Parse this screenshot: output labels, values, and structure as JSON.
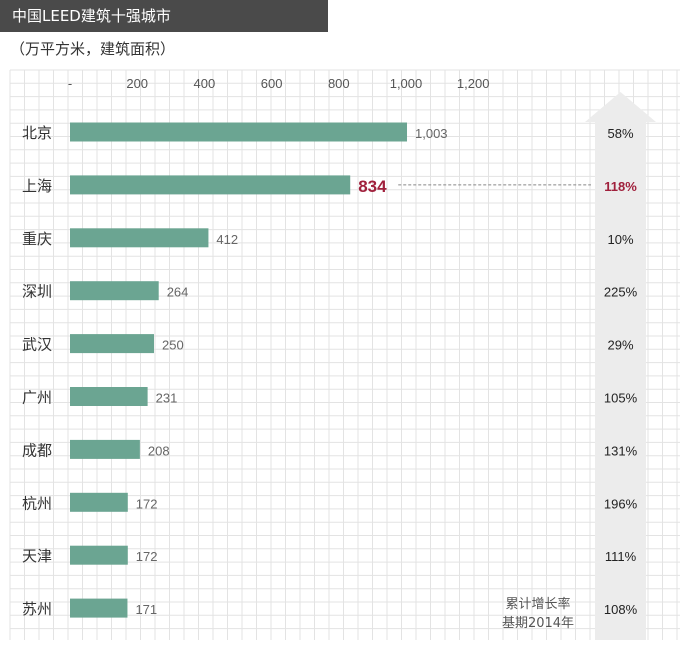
{
  "header": {
    "title": "中国LEED建筑十强城市",
    "subtitle": "（万平方米，建筑面积）"
  },
  "note": {
    "line1": "累计增长率",
    "line2": "基期2014年"
  },
  "colors": {
    "bar": "#6ba592",
    "highlight": "#a0203c",
    "grid": "#e3e3e3",
    "arrow": "#ececec"
  },
  "chart_data": {
    "type": "bar",
    "orientation": "horizontal",
    "categories": [
      "北京",
      "上海",
      "重庆",
      "深圳",
      "武汉",
      "广州",
      "成都",
      "杭州",
      "天津",
      "苏州"
    ],
    "values": [
      1003,
      834,
      412,
      264,
      250,
      231,
      208,
      172,
      172,
      171
    ],
    "value_labels": [
      "1,003",
      "834",
      "412",
      "264",
      "250",
      "231",
      "208",
      "172",
      "172",
      "171"
    ],
    "growth": [
      "58%",
      "118%",
      "10%",
      "225%",
      "29%",
      "105%",
      "131%",
      "196%",
      "111%",
      "108%"
    ],
    "highlight_index": 1,
    "xlim": [
      0,
      1200
    ],
    "xticks": [
      0,
      200,
      400,
      600,
      800,
      1000,
      1200
    ],
    "xtick_labels": [
      "-",
      "200",
      "400",
      "600",
      "800",
      "1,000",
      "1,200"
    ],
    "grid": true
  }
}
